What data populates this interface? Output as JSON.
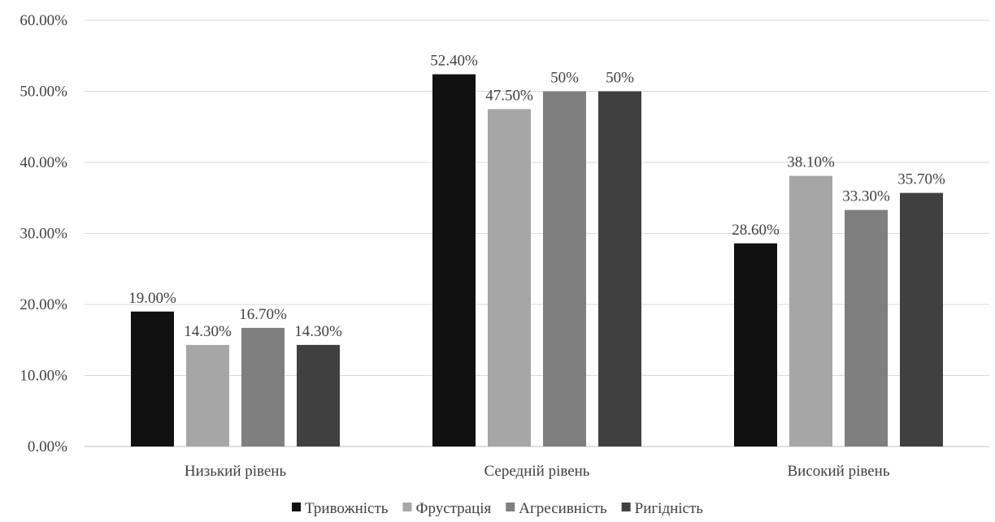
{
  "chart_data": {
    "type": "bar",
    "categories": [
      "Низький рівень",
      "Середній рівень",
      "Високий рівень"
    ],
    "series": [
      {
        "name": "Тривожність",
        "values": [
          19.0,
          52.4,
          28.6
        ],
        "labels": [
          "19.00%",
          "52.40%",
          "28.60%"
        ],
        "color": "#111111"
      },
      {
        "name": "Фрустрація",
        "values": [
          14.3,
          47.5,
          38.1
        ],
        "labels": [
          "14.30%",
          "47.50%",
          "38.10%"
        ],
        "color": "#a6a6a6"
      },
      {
        "name": "Агресивність",
        "values": [
          16.7,
          50.0,
          33.3
        ],
        "labels": [
          "16.70%",
          "50%",
          "33.30%"
        ],
        "color": "#7f7f7f"
      },
      {
        "name": "Ригідність",
        "values": [
          14.3,
          50.0,
          35.7
        ],
        "labels": [
          "14.30%",
          "50%",
          "35.70%"
        ],
        "color": "#404040"
      }
    ],
    "yticks": [
      "0.00%",
      "10.00%",
      "20.00%",
      "30.00%",
      "40.00%",
      "50.00%",
      "60.00%"
    ],
    "ylim": [
      0,
      60
    ],
    "grid": true,
    "legend_position": "bottom"
  }
}
